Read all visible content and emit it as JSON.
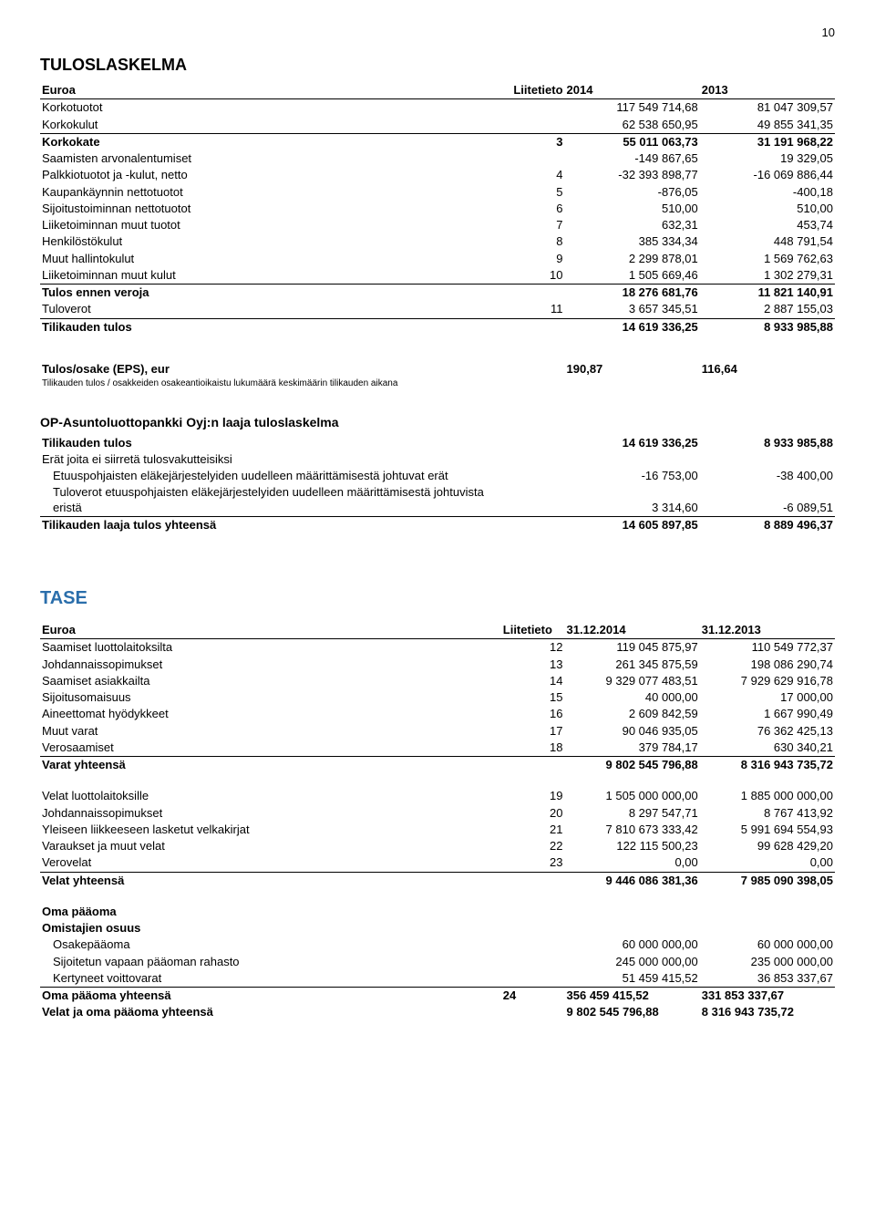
{
  "page_number": "10",
  "tulos": {
    "title": "TULOSLASKELMA",
    "header": {
      "label": "Euroa",
      "note": "Liitetieto",
      "a": "2014",
      "b": "2013"
    },
    "rows": [
      {
        "label": "Korkotuotot",
        "note": "",
        "a": "117 549 714,68",
        "b": "81 047 309,57"
      },
      {
        "label": "Korkokulut",
        "note": "",
        "a": "62 538 650,95",
        "b": "49 855 341,35",
        "underline": true
      },
      {
        "label": "Korkokate",
        "note": "3",
        "a": "55 011 063,73",
        "b": "31 191 968,22",
        "bold": true
      },
      {
        "label": "Saamisten arvonalentumiset",
        "note": "",
        "a": "-149 867,65",
        "b": "19 329,05"
      },
      {
        "label": "Palkkiotuotot ja -kulut, netto",
        "note": "4",
        "a": "-32 393 898,77",
        "b": "-16 069 886,44"
      },
      {
        "label": "Kaupankäynnin nettotuotot",
        "note": "5",
        "a": "-876,05",
        "b": "-400,18"
      },
      {
        "label": "Sijoitustoiminnan nettotuotot",
        "note": "6",
        "a": "510,00",
        "b": "510,00"
      },
      {
        "label": "Liiketoiminnan muut tuotot",
        "note": "7",
        "a": "632,31",
        "b": "453,74"
      },
      {
        "label": "Henkilöstökulut",
        "note": "8",
        "a": "385 334,34",
        "b": "448 791,54"
      },
      {
        "label": "Muut hallintokulut",
        "note": "9",
        "a": "2 299 878,01",
        "b": "1 569 762,63"
      },
      {
        "label": "Liiketoiminnan muut kulut",
        "note": "10",
        "a": "1 505 669,46",
        "b": "1 302 279,31",
        "underline": true
      },
      {
        "label": "Tulos ennen veroja",
        "note": "",
        "a": "18 276 681,76",
        "b": "11 821 140,91",
        "bold": true
      },
      {
        "label": "Tuloverot",
        "note": "11",
        "a": "3 657 345,51",
        "b": "2 887 155,03",
        "underline": true
      },
      {
        "label": "Tilikauden tulos",
        "note": "",
        "a": "14 619 336,25",
        "b": "8 933 985,88",
        "bold": true
      }
    ],
    "eps": {
      "label": "Tulos/osake (EPS), eur",
      "a": "190,87",
      "b": "116,64",
      "foot": "Tilikauden tulos / osakkeiden osakeantioikaistu lukumäärä keskimäärin tilikauden aikana"
    },
    "laaja": {
      "title": "OP-Asuntoluottopankki Oyj:n laaja tuloslaskelma",
      "rows": [
        {
          "label": "Tilikauden tulos",
          "a": "14 619 336,25",
          "b": "8 933 985,88",
          "bold": true
        },
        {
          "label": "Erät joita ei siirretä tulosvakutteisiksi",
          "a": "",
          "b": ""
        },
        {
          "label": "Etuuspohjaisten eläkejärjestelyiden uudelleen määrittämisestä johtuvat erät",
          "a": "-16 753,00",
          "b": "-38 400,00",
          "indent": 1
        },
        {
          "label": "Tuloverot etuuspohjaisten eläkejärjestelyiden uudelleen määrittämisestä johtuvista eristä",
          "a": "3 314,60",
          "b": "-6 089,51",
          "indent": 1,
          "underline": true
        },
        {
          "label": "Tilikauden laaja tulos yhteensä",
          "a": "14 605 897,85",
          "b": "8 889 496,37",
          "bold": true
        }
      ]
    }
  },
  "tase": {
    "title": "TASE",
    "header": {
      "label": "Euroa",
      "note": "Liitetieto",
      "a": "31.12.2014",
      "b": "31.12.2013"
    },
    "assets": [
      {
        "label": "Saamiset luottolaitoksilta",
        "note": "12",
        "a": "119 045 875,97",
        "b": "110 549 772,37"
      },
      {
        "label": "Johdannaissopimukset",
        "note": "13",
        "a": "261 345 875,59",
        "b": "198 086 290,74"
      },
      {
        "label": "Saamiset asiakkailta",
        "note": "14",
        "a": "9 329 077 483,51",
        "b": "7 929 629 916,78"
      },
      {
        "label": "Sijoitusomaisuus",
        "note": "15",
        "a": "40 000,00",
        "b": "17 000,00"
      },
      {
        "label": "Aineettomat hyödykkeet",
        "note": "16",
        "a": "2 609 842,59",
        "b": "1 667 990,49"
      },
      {
        "label": "Muut varat",
        "note": "17",
        "a": "90 046 935,05",
        "b": "76 362 425,13"
      },
      {
        "label": "Verosaamiset",
        "note": "18",
        "a": "379 784,17",
        "b": "630 340,21",
        "underline": true
      },
      {
        "label": "Varat yhteensä",
        "note": "",
        "a": "9 802 545 796,88",
        "b": "8 316 943 735,72",
        "bold": true
      }
    ],
    "liabilities": [
      {
        "label": "Velat luottolaitoksille",
        "note": "19",
        "a": "1 505 000 000,00",
        "b": "1 885 000 000,00"
      },
      {
        "label": "Johdannaissopimukset",
        "note": "20",
        "a": "8 297 547,71",
        "b": "8 767 413,92"
      },
      {
        "label": "Yleiseen liikkeeseen lasketut velkakirjat",
        "note": "21",
        "a": "7 810 673 333,42",
        "b": "5 991 694 554,93"
      },
      {
        "label": "Varaukset ja muut velat",
        "note": "22",
        "a": "122 115 500,23",
        "b": "99 628 429,20"
      },
      {
        "label": "Verovelat",
        "note": "23",
        "a": "0,00",
        "b": "0,00",
        "underline": true
      },
      {
        "label": "Velat yhteensä",
        "note": "",
        "a": "9 446 086 381,36",
        "b": "7 985 090 398,05",
        "bold": true
      }
    ],
    "equity": {
      "header1": "Oma pääoma",
      "header2": "Omistajien osuus",
      "rows": [
        {
          "label": "Osakepääoma",
          "a": "60 000 000,00",
          "b": "60 000 000,00",
          "indent": 1
        },
        {
          "label": "Sijoitetun vapaan pääoman rahasto",
          "a": "245 000 000,00",
          "b": "235 000 000,00",
          "indent": 1
        },
        {
          "label": "Kertyneet voittovarat",
          "a": "51 459 415,52",
          "b": "36 853 337,67",
          "indent": 1,
          "underline": true
        }
      ],
      "total": {
        "label": "Oma pääoma yhteensä",
        "note": "24",
        "a": "356 459 415,52",
        "b": "331 853 337,67"
      },
      "grand": {
        "label": "Velat ja oma pääoma yhteensä",
        "a": "9 802 545 796,88",
        "b": "8 316 943 735,72"
      }
    }
  }
}
